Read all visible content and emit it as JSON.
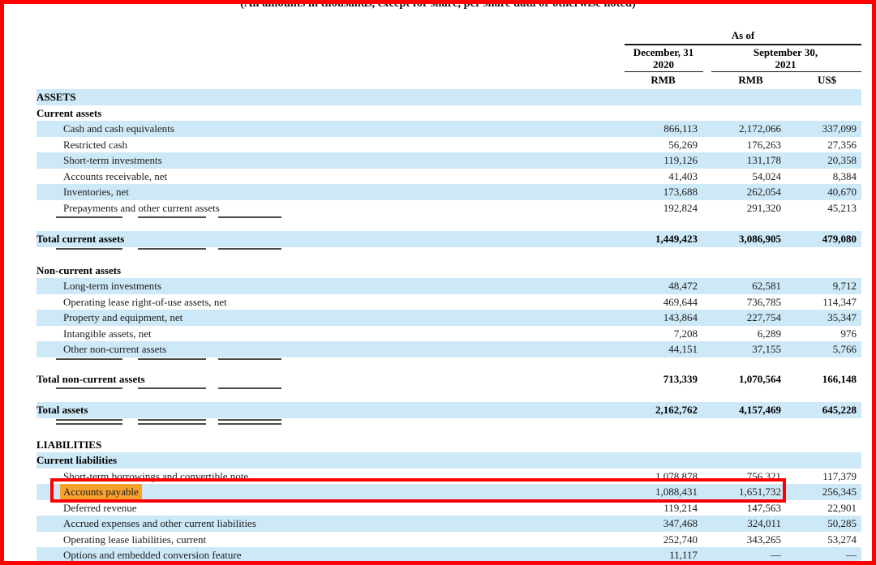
{
  "page": {
    "top_note": "(All amounts in thousands, except for share, per share data or otherwise noted)"
  },
  "colors": {
    "stripe_blue": "#cde8f7",
    "highlight_orange": "#f6a22d",
    "annotation_red": "#ff0000"
  },
  "header": {
    "as_of": "As of",
    "col1_line1": "December, 31",
    "col1_line2": "2020",
    "col2_line1": "September 30,",
    "col2_line2": "2021",
    "units": [
      "RMB",
      "RMB",
      "US$"
    ]
  },
  "annotation": {
    "shape": "red-box",
    "target_row": "Accounts payable"
  },
  "table": {
    "rows": [
      {
        "type": "section",
        "bg": "blue",
        "label": "ASSETS"
      },
      {
        "type": "section",
        "bg": "white",
        "label": "Current assets"
      },
      {
        "type": "item",
        "bg": "blue",
        "label": "Cash and cash equivalents",
        "v": [
          "866,113",
          "2,172,066",
          "337,099"
        ]
      },
      {
        "type": "item",
        "bg": "white",
        "label": "Restricted cash",
        "v": [
          "56,269",
          "176,263",
          "27,356"
        ]
      },
      {
        "type": "item",
        "bg": "blue",
        "label": "Short-term investments",
        "v": [
          "119,126",
          "131,178",
          "20,358"
        ]
      },
      {
        "type": "item",
        "bg": "white",
        "label": "Accounts receivable, net",
        "v": [
          "41,403",
          "54,024",
          "8,384"
        ]
      },
      {
        "type": "item",
        "bg": "blue",
        "label": "Inventories, net",
        "v": [
          "173,688",
          "262,054",
          "40,670"
        ]
      },
      {
        "type": "item",
        "bg": "white",
        "label": "Prepayments and other current assets",
        "v": [
          "192,824",
          "291,320",
          "45,213"
        ]
      },
      {
        "type": "rule",
        "style": "single"
      },
      {
        "type": "spacer",
        "h": 13
      },
      {
        "type": "total",
        "bg": "blue",
        "label": "Total current assets",
        "v": [
          "1,449,423",
          "3,086,905",
          "479,080"
        ]
      },
      {
        "type": "rule",
        "style": "single"
      },
      {
        "type": "spacer",
        "h": 13
      },
      {
        "type": "section",
        "bg": "white",
        "label": "Non-current assets"
      },
      {
        "type": "item",
        "bg": "blue",
        "label": "Long-term investments",
        "v": [
          "48,472",
          "62,581",
          "9,712"
        ]
      },
      {
        "type": "item",
        "bg": "white",
        "label": "Operating lease right-of-use assets, net",
        "v": [
          "469,644",
          "736,785",
          "114,347"
        ]
      },
      {
        "type": "item",
        "bg": "blue",
        "label": "Property and equipment, net",
        "v": [
          "143,864",
          "227,754",
          "35,347"
        ]
      },
      {
        "type": "item",
        "bg": "white",
        "label": "Intangible assets, net",
        "v": [
          "7,208",
          "6,289",
          "976"
        ]
      },
      {
        "type": "item",
        "bg": "blue",
        "label": "Other non-current assets",
        "v": [
          "44,151",
          "37,155",
          "5,766"
        ]
      },
      {
        "type": "rule",
        "style": "single"
      },
      {
        "type": "spacer",
        "h": 11
      },
      {
        "type": "total",
        "bg": "white",
        "label": "Total non-current assets",
        "v": [
          "713,339",
          "1,070,564",
          "166,148"
        ]
      },
      {
        "type": "rule",
        "style": "single"
      },
      {
        "type": "spacer",
        "h": 13
      },
      {
        "type": "total",
        "bg": "blue",
        "label": "Total assets",
        "v": [
          "2,162,762",
          "4,157,469",
          "645,228"
        ]
      },
      {
        "type": "rule",
        "style": "double"
      },
      {
        "type": "spacer",
        "h": 14
      },
      {
        "type": "section",
        "bg": "white",
        "label": "LIABILITIES"
      },
      {
        "type": "section",
        "bg": "blue",
        "label": "Current liabilities"
      },
      {
        "type": "item",
        "bg": "white",
        "label": "Short-term borrowings and convertible note",
        "v": [
          "1,078,878",
          "756,321",
          "117,379"
        ]
      },
      {
        "type": "item",
        "bg": "blue",
        "label": "Accounts payable",
        "v": [
          "1,088,431",
          "1,651,732",
          "256,345"
        ],
        "highlight": true,
        "annotated": true
      },
      {
        "type": "item",
        "bg": "white",
        "label": "Deferred revenue",
        "v": [
          "119,214",
          "147,563",
          "22,901"
        ]
      },
      {
        "type": "item",
        "bg": "blue",
        "label": "Accrued expenses and other current liabilities",
        "v": [
          "347,468",
          "324,011",
          "50,285"
        ]
      },
      {
        "type": "item",
        "bg": "white",
        "label": "Operating lease liabilities, current",
        "v": [
          "252,740",
          "343,265",
          "53,274"
        ]
      },
      {
        "type": "item",
        "bg": "blue",
        "label": "Options and embedded conversion feature",
        "v": [
          "11,117",
          "—",
          "—"
        ]
      }
    ]
  }
}
